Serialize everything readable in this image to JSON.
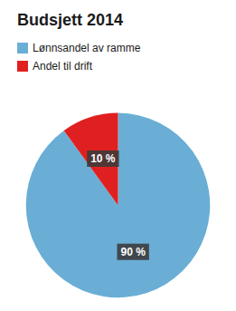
{
  "chart_data": {
    "type": "pie",
    "title": "Budsjett 2014",
    "categories": [
      "Lønnsandel av ramme",
      "Andel til drift"
    ],
    "values": [
      90,
      10
    ],
    "value_labels": [
      "90 %",
      "10 %"
    ],
    "colors": [
      "#6aaed6",
      "#e02020"
    ],
    "data_labels": true,
    "legend": "upper left"
  }
}
